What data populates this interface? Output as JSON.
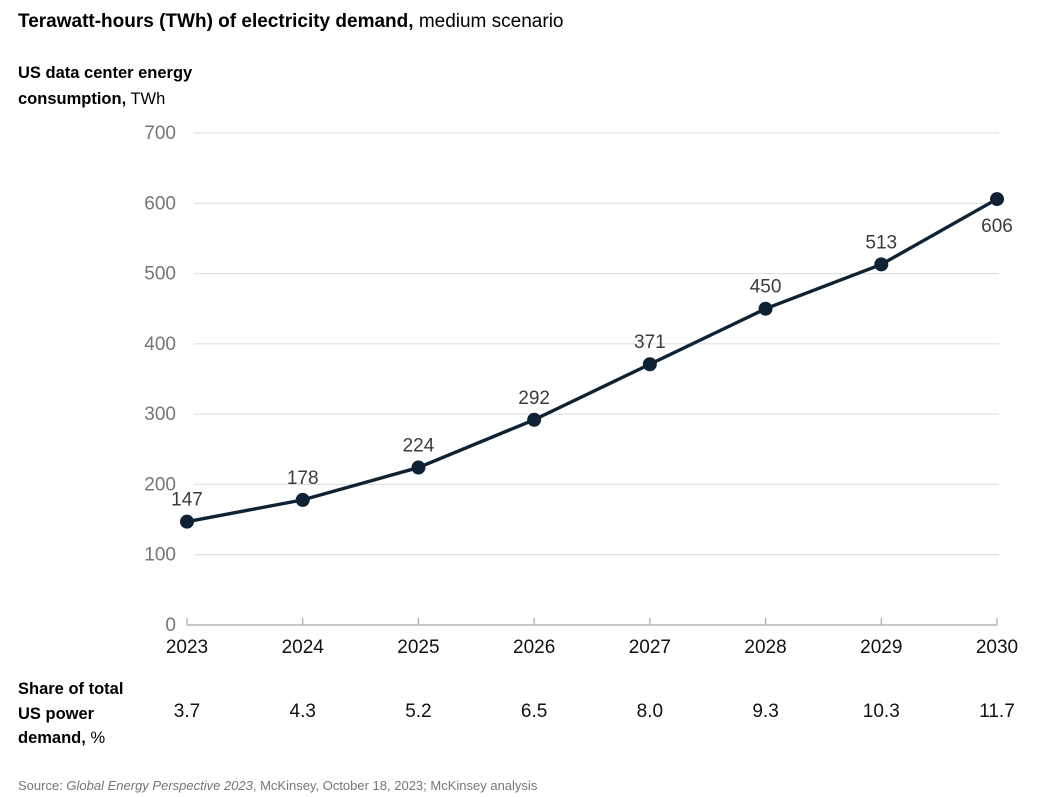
{
  "header": {
    "title_bold": "Terawatt-hours (TWh) of electricity demand,",
    "title_regular": "medium scenario",
    "subtitle_bold_line1": "US data center energy",
    "subtitle_bold_line2": "consumption,",
    "subtitle_unit": "TWh"
  },
  "chart_data": {
    "type": "line",
    "title": "Terawatt-hours (TWh) of electricity demand, medium scenario",
    "ylabel": "US data center energy consumption, TWh",
    "categories": [
      "2023",
      "2024",
      "2025",
      "2026",
      "2027",
      "2028",
      "2029",
      "2030"
    ],
    "series": [
      {
        "name": "US data center energy consumption (TWh)",
        "values": [
          147,
          178,
          224,
          292,
          371,
          450,
          513,
          606
        ]
      }
    ],
    "share_of_total_us_power_demand_pct": [
      3.7,
      4.3,
      5.2,
      6.5,
      8.0,
      9.3,
      10.3,
      11.7
    ],
    "ylim": [
      0,
      700
    ],
    "yticks": [
      0,
      100,
      200,
      300,
      400,
      500,
      600,
      700
    ],
    "grid": "horizontal",
    "legend": "none"
  },
  "share_row": {
    "label_line1": "Share of total",
    "label_line2": "US power",
    "label_line3": "demand,",
    "label_unit": "%",
    "values": [
      "3.7",
      "4.3",
      "5.2",
      "6.5",
      "8.0",
      "9.3",
      "10.3",
      "11.7"
    ]
  },
  "source": {
    "prefix": "Source: ",
    "italic": "Global Energy Perspective 2023",
    "suffix": ", McKinsey, October 18, 2023; McKinsey analysis"
  },
  "colors": {
    "line": "#0e2233",
    "point": "#0e2233",
    "gridline": "#dcdcdc",
    "axis_line": "#a8a8a8",
    "y_label": "#767676",
    "x_label": "#111111",
    "data_label": "#3c3c3c",
    "share_value": "#111111"
  }
}
